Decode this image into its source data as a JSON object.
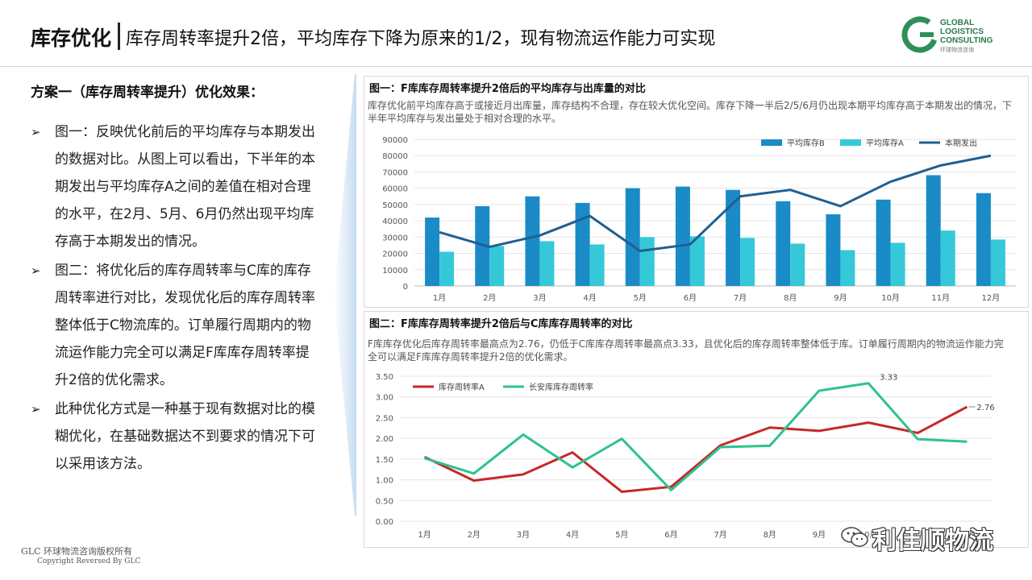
{
  "header": {
    "title_main": "库存优化",
    "title_sub": "库存周转率提升2倍，平均库存下降为原来的1/2，现有物流运作能力可实现",
    "logo_lines": [
      "GLOBAL",
      "LOGISTICS",
      "CONSULTING"
    ],
    "logo_cn": "环球物流咨询"
  },
  "left": {
    "section_title": "方案一（库存周转率提升）优化效果：",
    "bullets": [
      "图一：反映优化前后的平均库存与本期发出的数据对比。从图上可以看出，下半年的本期发出与平均库存A之间的差值在相对合理的水平，在2月、5月、6月仍然出现平均库存高于本期发出的情况。",
      "图二：将优化后的库存周转率与C库的库存周转率进行对比，发现优化后的库存周转率整体低于C物流库的。订单履行周期内的物流运作能力完全可以满足F库库存周转率提升2倍的优化需求。",
      "此种优化方式是一种基于现有数据对比的模糊优化，在基础数据达不到要求的情况下可以采用该方法。"
    ]
  },
  "chart1": {
    "panel_title": "图一：F库库存周转率提升2倍后的平均库存与出库量的对比",
    "description": "库存优化前平均库存高于或接近月出库量，库存结构不合理，存在较大优化空间。库存下降一半后2/5/6月仍出现本期平均库存高于本期发出的情况，下半年平均库存与发出量处于相对合理的水平。"
  },
  "chart2": {
    "panel_title": "图二：F库库存周转率提升2倍后与C库库存周转率的对比",
    "description": "F库库存优化后库存周转率最高点为2.76，仍低于C库库存周转率最高点3.33，且优化后的库存周转率整体低于库。订单履行周期内的物流运作能力完全可以满足F库库存周转率提升2倍的优化需求。"
  },
  "chart_data": [
    {
      "type": "bar",
      "categories": [
        "1月",
        "2月",
        "3月",
        "4月",
        "5月",
        "6月",
        "7月",
        "8月",
        "9月",
        "10月",
        "11月",
        "12月"
      ],
      "series": [
        {
          "name": "平均库存B",
          "kind": "bar",
          "color": "#1a8bc7",
          "values": [
            42000,
            49000,
            55000,
            51000,
            60000,
            61000,
            59000,
            52000,
            44000,
            53000,
            68000,
            57000
          ]
        },
        {
          "name": "平均库存A",
          "kind": "bar",
          "color": "#35c8d8",
          "values": [
            21000,
            24500,
            27500,
            25500,
            30000,
            30500,
            29500,
            26000,
            22000,
            26500,
            34000,
            28500
          ]
        },
        {
          "name": "本期发出",
          "kind": "line",
          "color": "#215f8f",
          "values": [
            33000,
            24000,
            31000,
            43000,
            21500,
            25500,
            55000,
            59000,
            49000,
            64000,
            74000,
            80000
          ]
        }
      ],
      "ylim": [
        0,
        90000
      ],
      "yticks": [
        "0",
        "10000",
        "20000",
        "30000",
        "40000",
        "50000",
        "60000",
        "70000",
        "80000",
        "90000"
      ],
      "legend": "top-right",
      "grid": true
    },
    {
      "type": "line",
      "categories": [
        "1月",
        "2月",
        "3月",
        "4月",
        "5月",
        "6月",
        "7月",
        "8月",
        "9月",
        "10月",
        "11月",
        "12月"
      ],
      "series": [
        {
          "name": "库存周转率A",
          "color": "#c62828",
          "values": [
            1.55,
            0.98,
            1.13,
            1.66,
            0.71,
            0.83,
            1.83,
            2.26,
            2.18,
            2.38,
            2.13,
            2.76
          ]
        },
        {
          "name": "长安库库存周转率",
          "color": "#2ec28e",
          "values": [
            1.52,
            1.15,
            2.09,
            1.3,
            1.99,
            0.75,
            1.79,
            1.82,
            3.15,
            3.33,
            1.98,
            1.92
          ]
        }
      ],
      "ylim": [
        0,
        3.5
      ],
      "yticks": [
        "0.00",
        "0.50",
        "1.00",
        "1.50",
        "2.00",
        "2.50",
        "3.00",
        "3.50"
      ],
      "annotations": [
        "3.33",
        "2.76"
      ],
      "legend": "top-left",
      "grid": true
    }
  ],
  "footer": {
    "line1": "GLC 环球物流咨询版权所有",
    "line2": "Copyright Reversed By GLC"
  },
  "watermark": "利佳顺物流"
}
